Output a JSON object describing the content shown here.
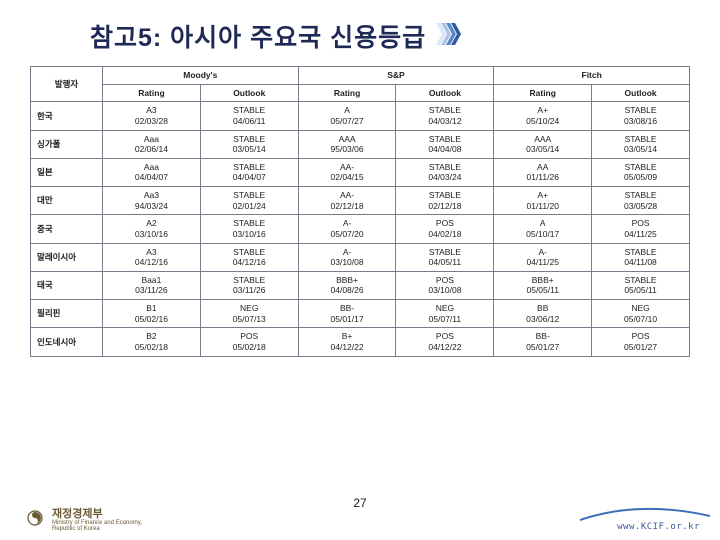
{
  "title": "참고5: 아시아 주요국 신용등급",
  "page_number": "27",
  "footer": {
    "org_ko": "재정경제부",
    "org_en_line1": "Ministry of Finance and Economy,",
    "org_en_line2": "Republic of Korea",
    "url": "www.KCIF.or.kr"
  },
  "colors": {
    "title": "#1e2a55",
    "accent_fills": [
      "#dbe7f5",
      "#a8c3e6",
      "#5a86c2",
      "#2b5aa0"
    ],
    "border": "#7a7a8a",
    "footer_gold": "#6b5a33",
    "url": "#3a5aa0",
    "accent_curve": "#3a6fb8"
  },
  "table": {
    "header_publisher": "발행자",
    "agencies": [
      "Moody's",
      "S&P",
      "Fitch"
    ],
    "sub_headers": [
      "Rating",
      "Outlook",
      "Rating",
      "Outlook",
      "Rating",
      "Outlook"
    ],
    "rows": [
      {
        "country": "한국",
        "cells": [
          {
            "v1": "A3",
            "v2": "02/03/28"
          },
          {
            "v1": "STABLE",
            "v2": "04/06/11"
          },
          {
            "v1": "A",
            "v2": "05/07/27"
          },
          {
            "v1": "STABLE",
            "v2": "04/03/12"
          },
          {
            "v1": "A+",
            "v2": "05/10/24"
          },
          {
            "v1": "STABLE",
            "v2": "03/08/16"
          }
        ]
      },
      {
        "country": "싱가폴",
        "cells": [
          {
            "v1": "Aaa",
            "v2": "02/06/14"
          },
          {
            "v1": "STABLE",
            "v2": "03/05/14"
          },
          {
            "v1": "AAA",
            "v2": "95/03/06"
          },
          {
            "v1": "STABLE",
            "v2": "04/04/08"
          },
          {
            "v1": "AAA",
            "v2": "03/05/14"
          },
          {
            "v1": "STABLE",
            "v2": "03/05/14"
          }
        ]
      },
      {
        "country": "일본",
        "cells": [
          {
            "v1": "Aaa",
            "v2": "04/04/07"
          },
          {
            "v1": "STABLE",
            "v2": "04/04/07"
          },
          {
            "v1": "AA-",
            "v2": "02/04/15"
          },
          {
            "v1": "STABLE",
            "v2": "04/03/24"
          },
          {
            "v1": "AA",
            "v2": "01/11/26"
          },
          {
            "v1": "STABLE",
            "v2": "05/05/09"
          }
        ]
      },
      {
        "country": "대만",
        "cells": [
          {
            "v1": "Aa3",
            "v2": "94/03/24"
          },
          {
            "v1": "STABLE",
            "v2": "02/01/24"
          },
          {
            "v1": "AA-",
            "v2": "02/12/18"
          },
          {
            "v1": "STABLE",
            "v2": "02/12/18"
          },
          {
            "v1": "A+",
            "v2": "01/11/20"
          },
          {
            "v1": "STABLE",
            "v2": "03/05/28"
          }
        ]
      },
      {
        "country": "중국",
        "cells": [
          {
            "v1": "A2",
            "v2": "03/10/16"
          },
          {
            "v1": "STABLE",
            "v2": "03/10/16"
          },
          {
            "v1": "A-",
            "v2": "05/07/20"
          },
          {
            "v1": "POS",
            "v2": "04/02/18"
          },
          {
            "v1": "A",
            "v2": "05/10/17"
          },
          {
            "v1": "POS",
            "v2": "04/11/25"
          }
        ]
      },
      {
        "country": "말레이시아",
        "cells": [
          {
            "v1": "A3",
            "v2": "04/12/16"
          },
          {
            "v1": "STABLE",
            "v2": "04/12/16"
          },
          {
            "v1": "A-",
            "v2": "03/10/08"
          },
          {
            "v1": "STABLE",
            "v2": "04/05/11"
          },
          {
            "v1": "A-",
            "v2": "04/11/25"
          },
          {
            "v1": "STABLE",
            "v2": "04/11/08"
          }
        ]
      },
      {
        "country": "태국",
        "cells": [
          {
            "v1": "Baa1",
            "v2": "03/11/26"
          },
          {
            "v1": "STABLE",
            "v2": "03/11/26"
          },
          {
            "v1": "BBB+",
            "v2": "04/08/26"
          },
          {
            "v1": "POS",
            "v2": "03/10/08"
          },
          {
            "v1": "BBB+",
            "v2": "05/05/11"
          },
          {
            "v1": "STABLE",
            "v2": "05/05/11"
          }
        ]
      },
      {
        "country": "필리핀",
        "cells": [
          {
            "v1": "B1",
            "v2": "05/02/16"
          },
          {
            "v1": "NEG",
            "v2": "05/07/13"
          },
          {
            "v1": "BB-",
            "v2": "05/01/17"
          },
          {
            "v1": "NEG",
            "v2": "05/07/11"
          },
          {
            "v1": "BB",
            "v2": "03/06/12"
          },
          {
            "v1": "NEG",
            "v2": "05/07/10"
          }
        ]
      },
      {
        "country": "인도네시아",
        "cells": [
          {
            "v1": "B2",
            "v2": "05/02/18"
          },
          {
            "v1": "POS",
            "v2": "05/02/18"
          },
          {
            "v1": "B+",
            "v2": "04/12/22"
          },
          {
            "v1": "POS",
            "v2": "04/12/22"
          },
          {
            "v1": "BB-",
            "v2": "05/01/27"
          },
          {
            "v1": "POS",
            "v2": "05/01/27"
          }
        ]
      }
    ]
  }
}
